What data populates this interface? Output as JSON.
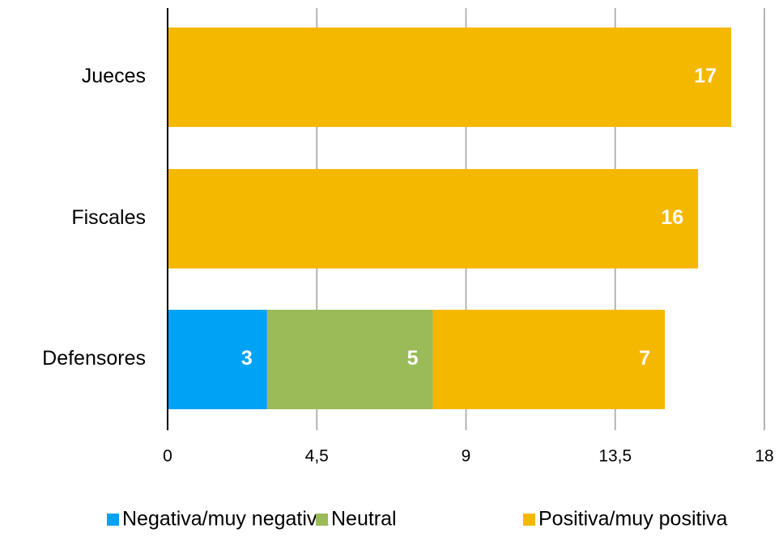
{
  "chart_data": {
    "type": "stacked-bar-horizontal",
    "categories": [
      "Jueces",
      "Fiscales",
      "Defensores"
    ],
    "series": [
      {
        "name": "Negativa/muy negativa",
        "color": "#00a2f5",
        "values": [
          null,
          null,
          3
        ]
      },
      {
        "name": "Neutral",
        "color": "#9bbb59",
        "values": [
          null,
          null,
          5
        ]
      },
      {
        "name": "Positiva/muy positiva",
        "color": "#f5b800",
        "values": [
          17,
          16,
          7
        ]
      }
    ],
    "xlim": [
      0,
      18
    ],
    "xticks": [
      0,
      {
        "value": 4.5,
        "label": "4,5"
      },
      9,
      {
        "value": 13.5,
        "label": "13,5"
      },
      18
    ],
    "grid": true,
    "legend": "bottom"
  }
}
